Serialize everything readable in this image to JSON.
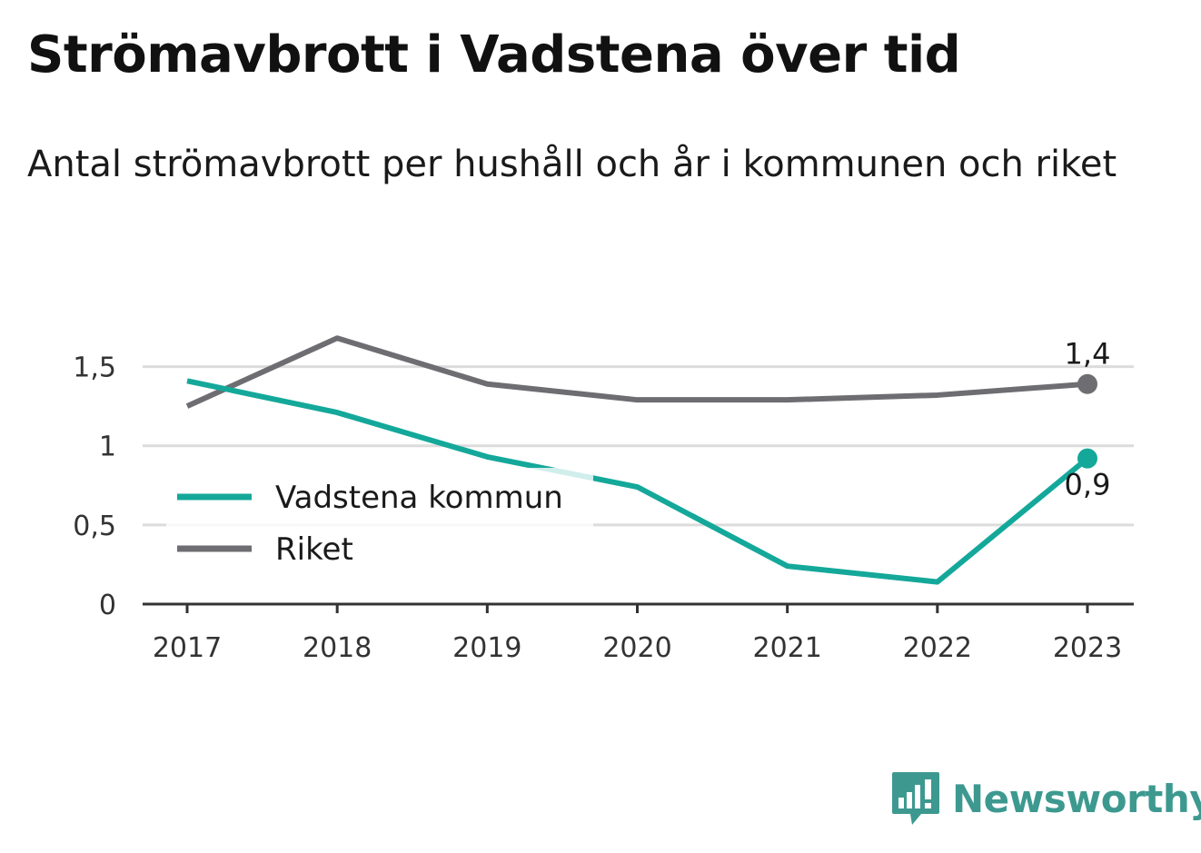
{
  "header": {
    "title": "Strömavbrott i Vadstena över tid",
    "subtitle": "Antal strömavbrott per hushåll och år i kommunen och riket"
  },
  "chart_data": {
    "type": "line",
    "categories": [
      "2017",
      "2018",
      "2019",
      "2020",
      "2021",
      "2022",
      "2023"
    ],
    "y_ticks": [
      {
        "value": 0,
        "label": "0"
      },
      {
        "value": 0.5,
        "label": "0,5"
      },
      {
        "value": 1,
        "label": "1"
      },
      {
        "value": 1.5,
        "label": "1,5"
      }
    ],
    "ylim": [
      0,
      1.75
    ],
    "grid": true,
    "legend_position": "left",
    "series": [
      {
        "name": "Vadstena kommun",
        "color": "#14a89a",
        "values": [
          1.41,
          1.21,
          0.93,
          0.74,
          0.24,
          0.14,
          0.92
        ],
        "end_label": "0,9",
        "end_label_position": "below"
      },
      {
        "name": "Riket",
        "color": "#6e6d72",
        "values": [
          1.25,
          1.68,
          1.39,
          1.29,
          1.29,
          1.32,
          1.39
        ],
        "end_label": "1,4",
        "end_label_position": "above"
      }
    ]
  },
  "branding": {
    "logo_text": "Newsworthy",
    "logo_icon": "newsworthy-chat-bars-icon",
    "color": "#3d9990"
  }
}
